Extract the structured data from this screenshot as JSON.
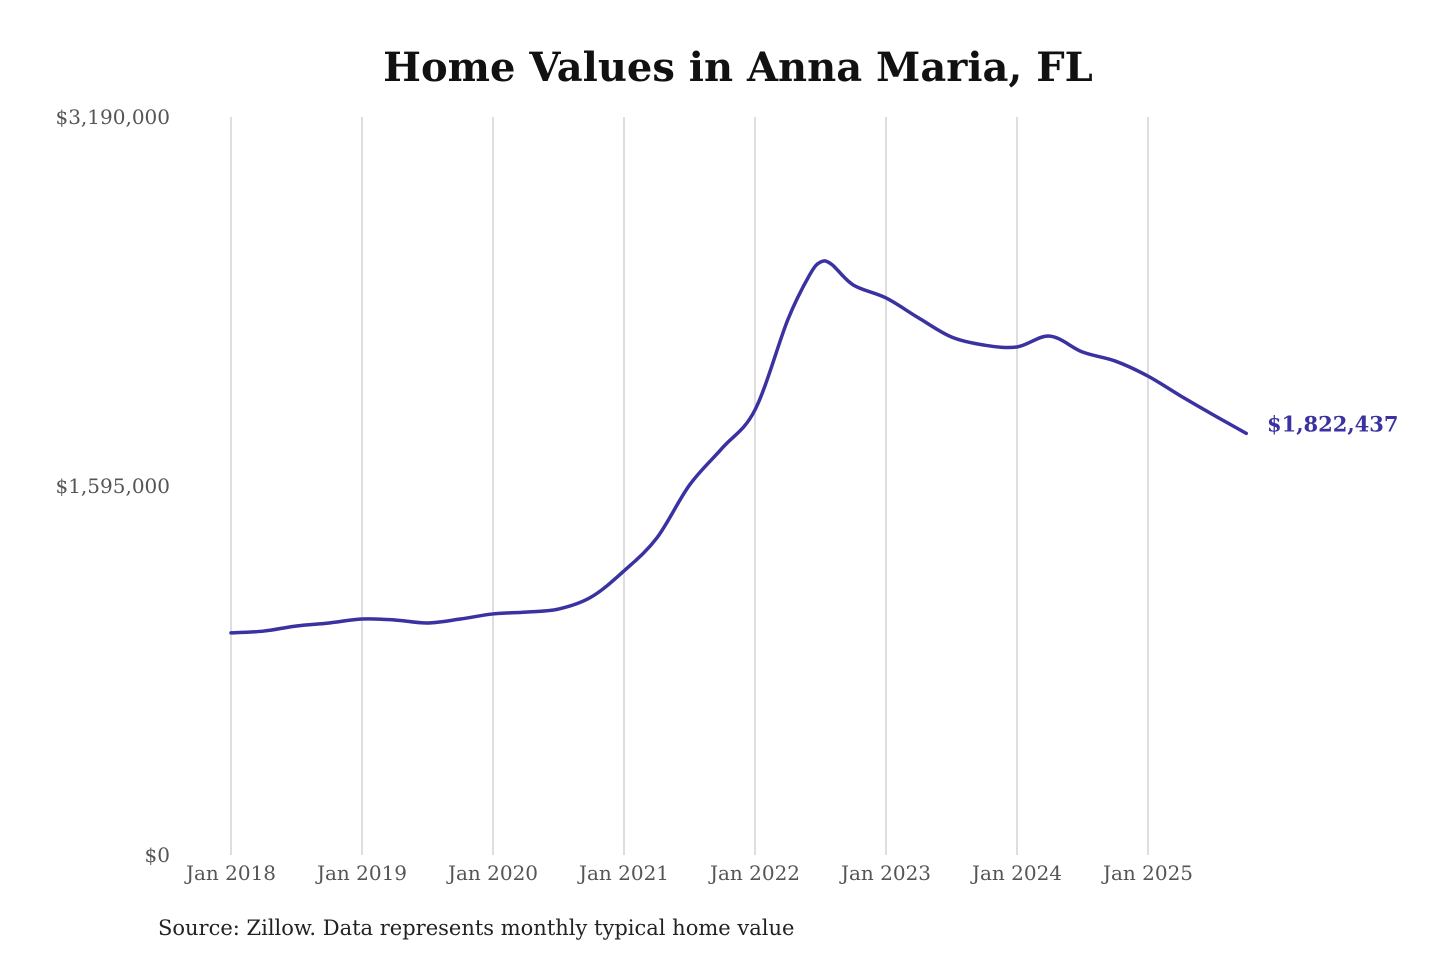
{
  "chart_data": {
    "type": "line",
    "title": "Home Values in Anna Maria, FL",
    "source": "Source: Zillow. Data represents monthly typical home value",
    "xlabel": "",
    "ylabel": "",
    "ylim": [
      0,
      3190000
    ],
    "y_ticks": [
      "$0",
      "$1,595,000",
      "$3,190,000"
    ],
    "y_tick_values": [
      0,
      1595000,
      3190000
    ],
    "x_ticks": [
      "Jan 2018",
      "Jan 2019",
      "Jan 2020",
      "Jan 2021",
      "Jan 2022",
      "Jan 2023",
      "Jan 2024",
      "Jan 2025"
    ],
    "grid": "vertical",
    "line_color": "#3a32a0",
    "end_label": "$1,822,437",
    "x": [
      "2018-01",
      "2018-04",
      "2018-07",
      "2018-10",
      "2019-01",
      "2019-04",
      "2019-07",
      "2019-10",
      "2020-01",
      "2020-04",
      "2020-07",
      "2020-10",
      "2021-01",
      "2021-04",
      "2021-07",
      "2021-10",
      "2022-01",
      "2022-04",
      "2022-06",
      "2022-07",
      "2022-08",
      "2022-10",
      "2023-01",
      "2023-04",
      "2023-07",
      "2023-10",
      "2024-01",
      "2024-04",
      "2024-07",
      "2024-10",
      "2025-01",
      "2025-04",
      "2025-07",
      "2025-10"
    ],
    "values": [
      960000,
      968000,
      990000,
      1003000,
      1020000,
      1016000,
      1003000,
      1020000,
      1042000,
      1050000,
      1063000,
      1115000,
      1228000,
      1370000,
      1599000,
      1759000,
      1924000,
      2313000,
      2507000,
      2563000,
      2554000,
      2464000,
      2408000,
      2321000,
      2239000,
      2204000,
      2196000,
      2243000,
      2174000,
      2135000,
      2070000,
      1984000,
      1902000,
      1822437
    ]
  }
}
